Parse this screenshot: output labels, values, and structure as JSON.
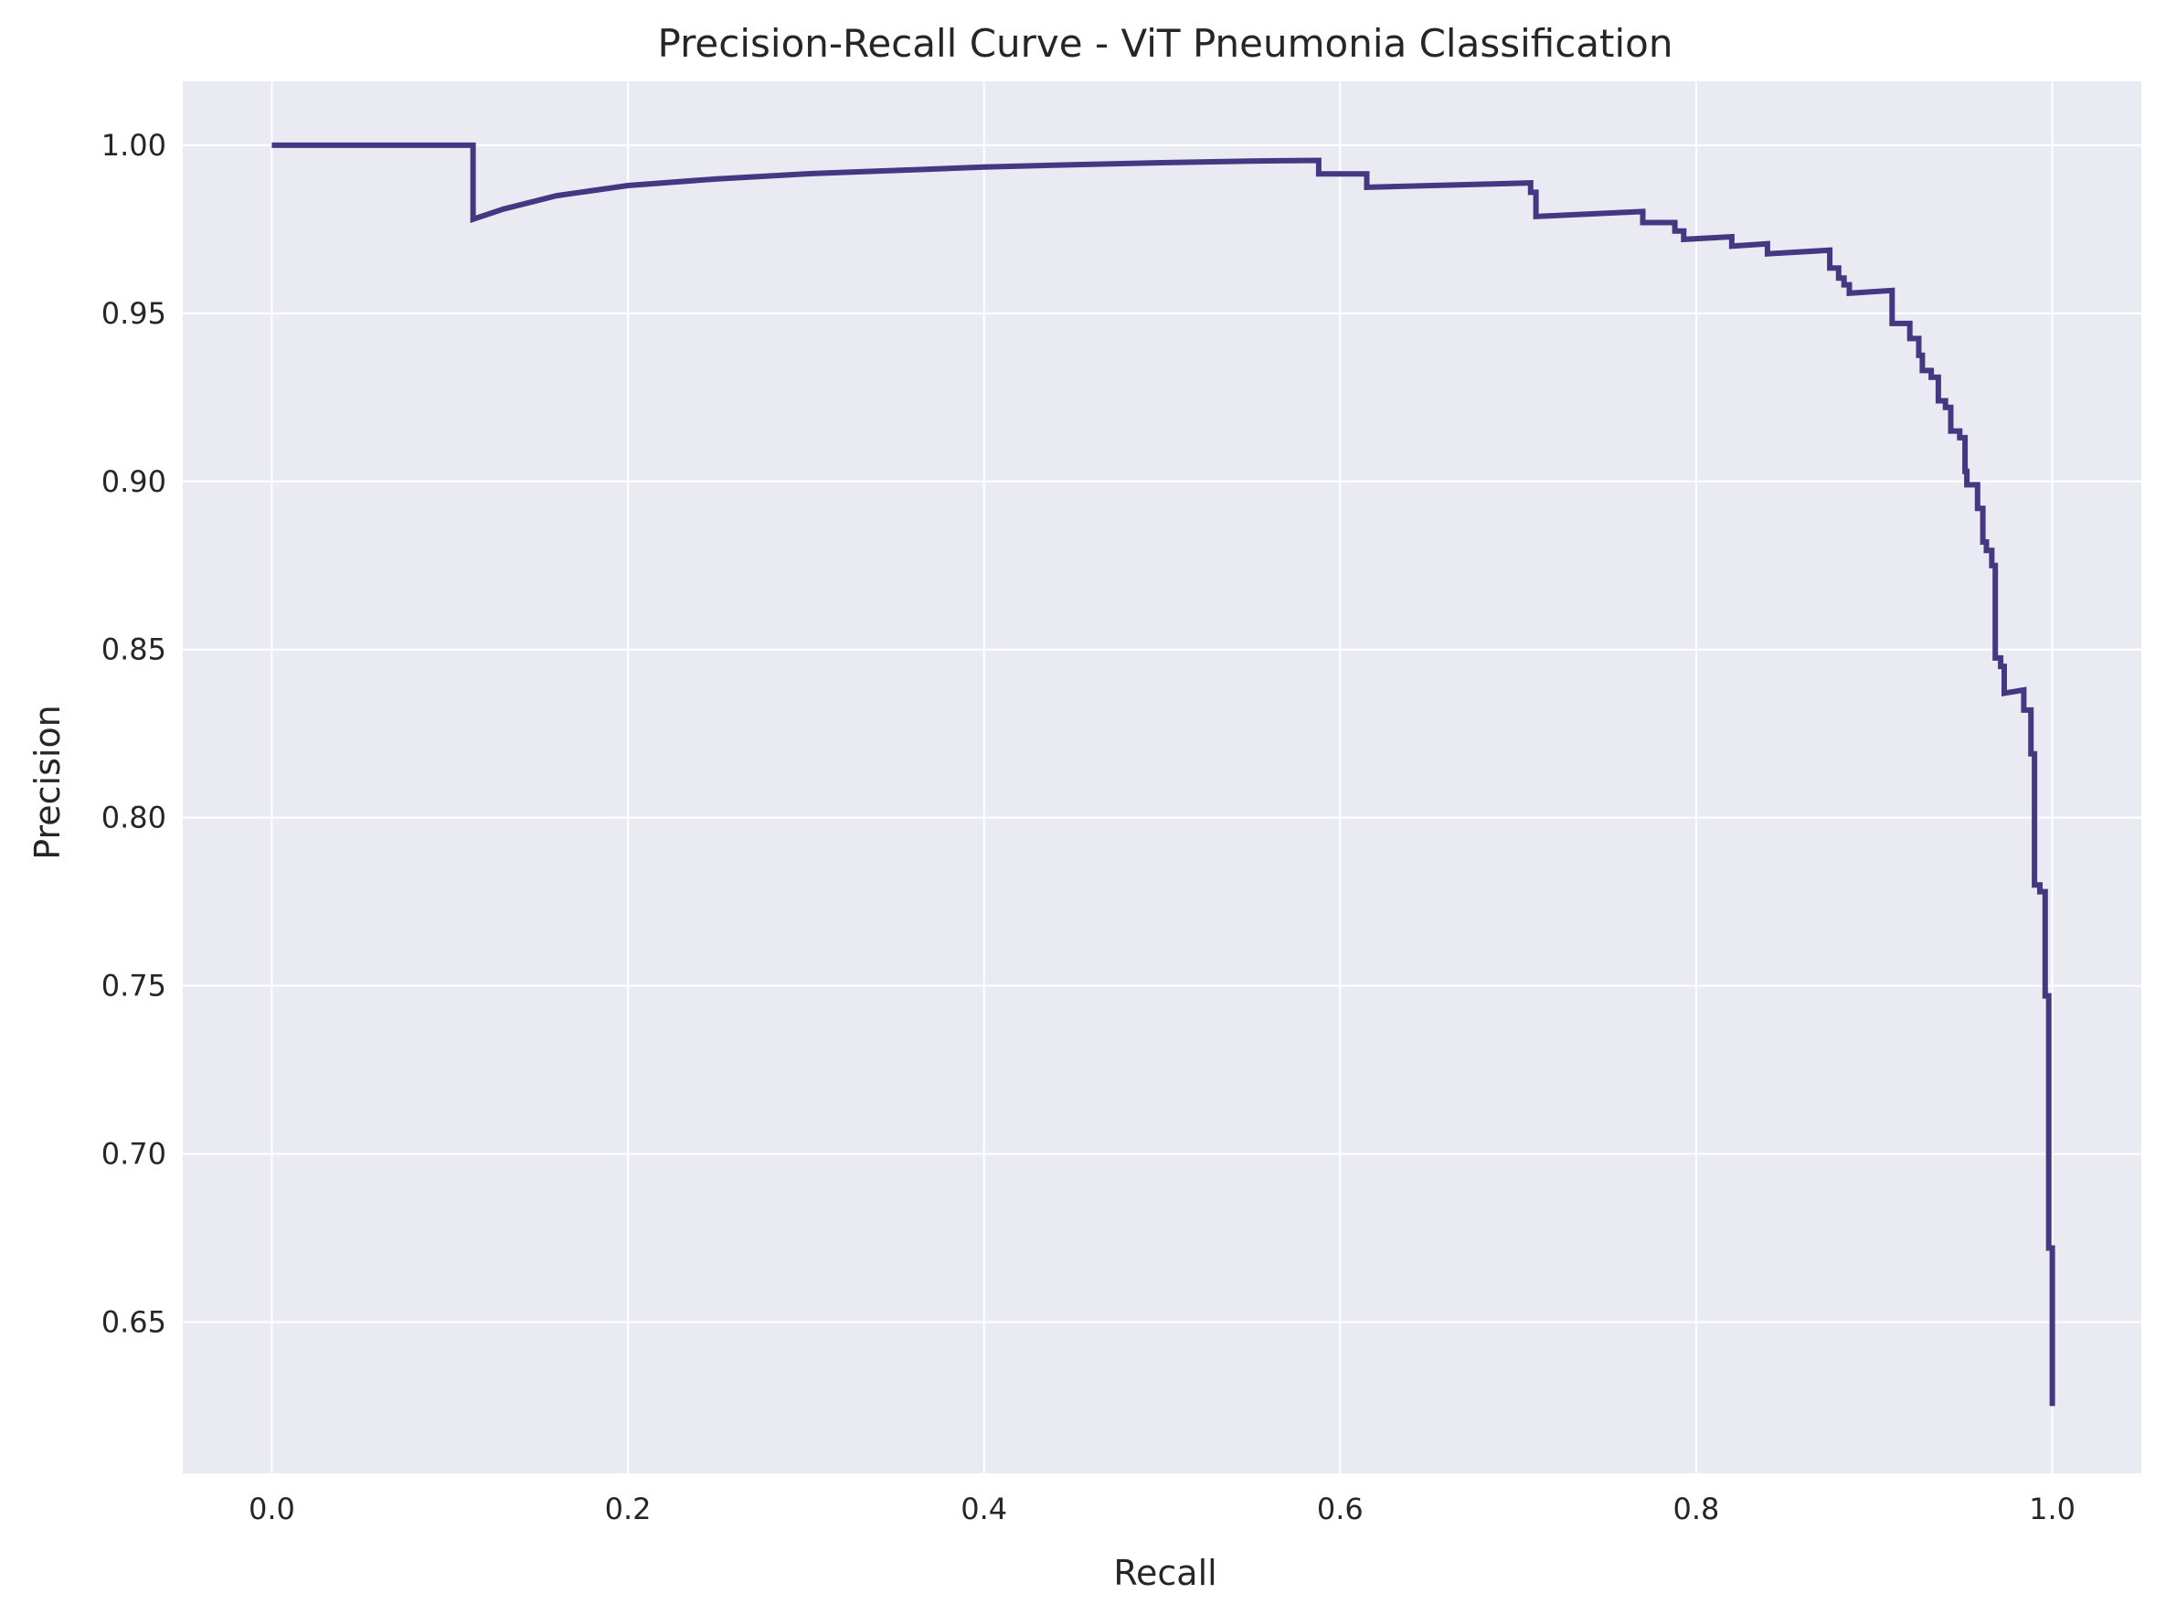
{
  "colors": {
    "plot_background": "#eaeaf2",
    "grid": "#ffffff",
    "line": "#453781",
    "text": "#262626"
  },
  "chart_data": {
    "type": "line",
    "title": "Precision-Recall Curve - ViT Pneumonia Classification",
    "xlabel": "Recall",
    "ylabel": "Precision",
    "xlim": [
      -0.05,
      1.05
    ],
    "ylim": [
      0.605,
      1.019
    ],
    "grid": true,
    "xticks": [
      0.0,
      0.2,
      0.4,
      0.6,
      0.8,
      1.0
    ],
    "xtick_labels": [
      "0.0",
      "0.2",
      "0.4",
      "0.6",
      "0.8",
      "1.0"
    ],
    "yticks": [
      0.65,
      0.7,
      0.75,
      0.8,
      0.85,
      0.9,
      0.95,
      1.0
    ],
    "ytick_labels": [
      "0.65",
      "0.70",
      "0.75",
      "0.80",
      "0.85",
      "0.90",
      "0.95",
      "1.00"
    ],
    "series": [
      {
        "x": [
          0.0,
          0.113,
          0.113,
          0.13,
          0.16,
          0.2,
          0.25,
          0.3,
          0.35,
          0.4,
          0.45,
          0.5,
          0.55,
          0.588,
          0.588,
          0.615,
          0.615,
          0.707,
          0.707,
          0.71,
          0.71,
          0.77,
          0.77,
          0.788,
          0.788,
          0.793,
          0.793,
          0.82,
          0.82,
          0.84,
          0.84,
          0.875,
          0.875,
          0.88,
          0.88,
          0.883,
          0.883,
          0.886,
          0.886,
          0.91,
          0.91,
          0.92,
          0.92,
          0.925,
          0.925,
          0.927,
          0.927,
          0.932,
          0.932,
          0.936,
          0.936,
          0.94,
          0.94,
          0.943,
          0.943,
          0.948,
          0.948,
          0.951,
          0.951,
          0.952,
          0.952,
          0.958,
          0.958,
          0.961,
          0.961,
          0.963,
          0.963,
          0.966,
          0.966,
          0.968,
          0.968,
          0.971,
          0.971,
          0.973,
          0.973,
          0.984,
          0.984,
          0.988,
          0.988,
          0.99,
          0.99,
          0.993,
          0.993,
          0.996,
          0.996,
          0.998,
          0.998,
          1.0,
          1.0
        ],
        "y": [
          1.0,
          1.0,
          0.978,
          0.981,
          0.985,
          0.988,
          0.99,
          0.9915,
          0.9925,
          0.9935,
          0.9942,
          0.9948,
          0.9953,
          0.9955,
          0.9915,
          0.9915,
          0.9875,
          0.9888,
          0.986,
          0.986,
          0.9788,
          0.9803,
          0.977,
          0.977,
          0.9745,
          0.9745,
          0.972,
          0.9728,
          0.97,
          0.9707,
          0.9677,
          0.9688,
          0.9635,
          0.9635,
          0.9605,
          0.9605,
          0.9585,
          0.9585,
          0.956,
          0.9568,
          0.947,
          0.947,
          0.9425,
          0.9425,
          0.9375,
          0.9375,
          0.933,
          0.933,
          0.931,
          0.931,
          0.924,
          0.924,
          0.922,
          0.922,
          0.915,
          0.915,
          0.913,
          0.913,
          0.903,
          0.903,
          0.899,
          0.899,
          0.892,
          0.892,
          0.882,
          0.882,
          0.8795,
          0.8795,
          0.875,
          0.875,
          0.8475,
          0.8475,
          0.845,
          0.845,
          0.837,
          0.838,
          0.832,
          0.832,
          0.819,
          0.819,
          0.78,
          0.78,
          0.778,
          0.778,
          0.747,
          0.747,
          0.672,
          0.672,
          0.625
        ]
      }
    ]
  }
}
